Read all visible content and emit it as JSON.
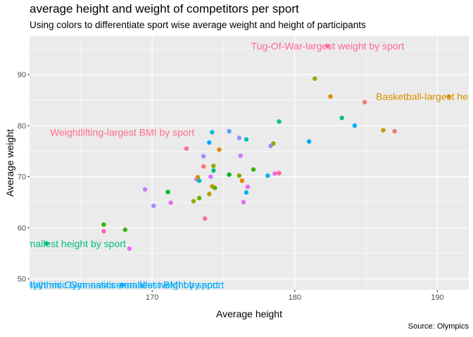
{
  "chart_data": {
    "type": "scatter",
    "title": "average height and weight of competitors per sport",
    "subtitle": "Using colors to differentiate sport wise average weight and height of participants",
    "caption": "Source: Olympics",
    "xlabel": "Average height",
    "ylabel": "Average weight",
    "xlim": [
      161.4,
      192.2
    ],
    "ylim": [
      47.8,
      97.6
    ],
    "x_ticks": [
      170,
      180,
      190
    ],
    "y_ticks": [
      50,
      60,
      70,
      80,
      90
    ],
    "grid": true,
    "legend": "none",
    "points": [
      {
        "x": 162.6,
        "y": 56.9,
        "color": "#00BF7D"
      },
      {
        "x": 166.6,
        "y": 60.6,
        "color": "#39B600"
      },
      {
        "x": 166.6,
        "y": 59.3,
        "color": "#FF62BC"
      },
      {
        "x": 167.9,
        "y": 48.8,
        "color": "#00B0F6"
      },
      {
        "x": 168.1,
        "y": 59.6,
        "color": "#39B600"
      },
      {
        "x": 168.4,
        "y": 55.9,
        "color": "#E76BF3"
      },
      {
        "x": 169.5,
        "y": 67.5,
        "color": "#C77CFF"
      },
      {
        "x": 170.1,
        "y": 64.3,
        "color": "#9590FF"
      },
      {
        "x": 171.1,
        "y": 67.0,
        "color": "#00BA38"
      },
      {
        "x": 171.3,
        "y": 64.9,
        "color": "#E76BF3"
      },
      {
        "x": 172.4,
        "y": 75.5,
        "color": "#FF6C91"
      },
      {
        "x": 172.9,
        "y": 65.2,
        "color": "#A3A500"
      },
      {
        "x": 173.1,
        "y": 69.5,
        "color": "#C77CFF"
      },
      {
        "x": 173.2,
        "y": 69.9,
        "color": "#D89000"
      },
      {
        "x": 173.3,
        "y": 65.8,
        "color": "#6BB100"
      },
      {
        "x": 173.3,
        "y": 69.2,
        "color": "#00C0AF"
      },
      {
        "x": 173.6,
        "y": 72.0,
        "color": "#F8766D"
      },
      {
        "x": 173.6,
        "y": 74.0,
        "color": "#9590FF"
      },
      {
        "x": 173.7,
        "y": 61.8,
        "color": "#FF6C91"
      },
      {
        "x": 174.0,
        "y": 66.6,
        "color": "#BB9D00"
      },
      {
        "x": 174.0,
        "y": 76.7,
        "color": "#00ACFC"
      },
      {
        "x": 174.1,
        "y": 70.0,
        "color": "#DB72FB"
      },
      {
        "x": 174.2,
        "y": 78.7,
        "color": "#00BCD8"
      },
      {
        "x": 174.2,
        "y": 68.1,
        "color": "#D39200"
      },
      {
        "x": 174.3,
        "y": 72.1,
        "color": "#85AD00"
      },
      {
        "x": 174.3,
        "y": 71.2,
        "color": "#00BF7D"
      },
      {
        "x": 174.4,
        "y": 67.8,
        "color": "#53B400"
      },
      {
        "x": 174.7,
        "y": 75.3,
        "color": "#E58700"
      },
      {
        "x": 175.4,
        "y": 78.9,
        "color": "#619CFF"
      },
      {
        "x": 175.4,
        "y": 70.4,
        "color": "#00B81F"
      },
      {
        "x": 176.1,
        "y": 70.2,
        "color": "#7CAE00"
      },
      {
        "x": 176.1,
        "y": 77.6,
        "color": "#8B93FF"
      },
      {
        "x": 176.2,
        "y": 74.1,
        "color": "#C77CFF"
      },
      {
        "x": 176.3,
        "y": 69.2,
        "color": "#E58700"
      },
      {
        "x": 176.4,
        "y": 65.0,
        "color": "#E76BF3"
      },
      {
        "x": 176.6,
        "y": 66.9,
        "color": "#00B0F6"
      },
      {
        "x": 176.6,
        "y": 77.3,
        "color": "#00BFC4"
      },
      {
        "x": 176.7,
        "y": 68.0,
        "color": "#EF67EB"
      },
      {
        "x": 177.1,
        "y": 71.4,
        "color": "#39B600"
      },
      {
        "x": 178.1,
        "y": 70.2,
        "color": "#00B4EF"
      },
      {
        "x": 178.3,
        "y": 76.0,
        "color": "#9F8CFF"
      },
      {
        "x": 178.5,
        "y": 76.5,
        "color": "#8EAB00"
      },
      {
        "x": 178.6,
        "y": 70.6,
        "color": "#F066EA"
      },
      {
        "x": 178.9,
        "y": 80.8,
        "color": "#00C08B"
      },
      {
        "x": 178.9,
        "y": 70.7,
        "color": "#FF6699"
      },
      {
        "x": 181.0,
        "y": 76.9,
        "color": "#00A9FF"
      },
      {
        "x": 181.4,
        "y": 89.2,
        "color": "#A3A500"
      },
      {
        "x": 182.3,
        "y": 95.6,
        "color": "#FF6699"
      },
      {
        "x": 182.5,
        "y": 85.7,
        "color": "#D89000"
      },
      {
        "x": 183.3,
        "y": 81.5,
        "color": "#00BF7D"
      },
      {
        "x": 184.2,
        "y": 80.0,
        "color": "#00A9FF"
      },
      {
        "x": 184.9,
        "y": 84.6,
        "color": "#F8766D"
      },
      {
        "x": 186.2,
        "y": 79.1,
        "color": "#C49A00"
      },
      {
        "x": 187.0,
        "y": 78.9,
        "color": "#F8766D"
      },
      {
        "x": 190.8,
        "y": 85.7,
        "color": "#D89000"
      }
    ],
    "annotations": [
      {
        "text": "Tug-Of-War-largest weight by sport",
        "x": 182.3,
        "y": 95.6,
        "color": "#FF6699"
      },
      {
        "text": "Basketball-largest height by sport",
        "x": 190.8,
        "y": 85.7,
        "color": "#D89000"
      },
      {
        "text": "Weightlifting-largest BMI by sport",
        "x": 167.9,
        "y": 78.7,
        "color": "#FF6C91"
      },
      {
        "text": "Gymnastics-smallest height by sport",
        "x": 162.6,
        "y": 56.9,
        "color": "#00BF7D"
      },
      {
        "text": "Rhythmic Gymnastics-smallest weight by sport",
        "x": 167.9,
        "y": 48.8,
        "color": "#00A9FF"
      },
      {
        "text": "Rhythmic Gymnastics-smallest BMI by sport",
        "x": 167.9,
        "y": 48.8,
        "color": "#00ACFC"
      }
    ]
  }
}
